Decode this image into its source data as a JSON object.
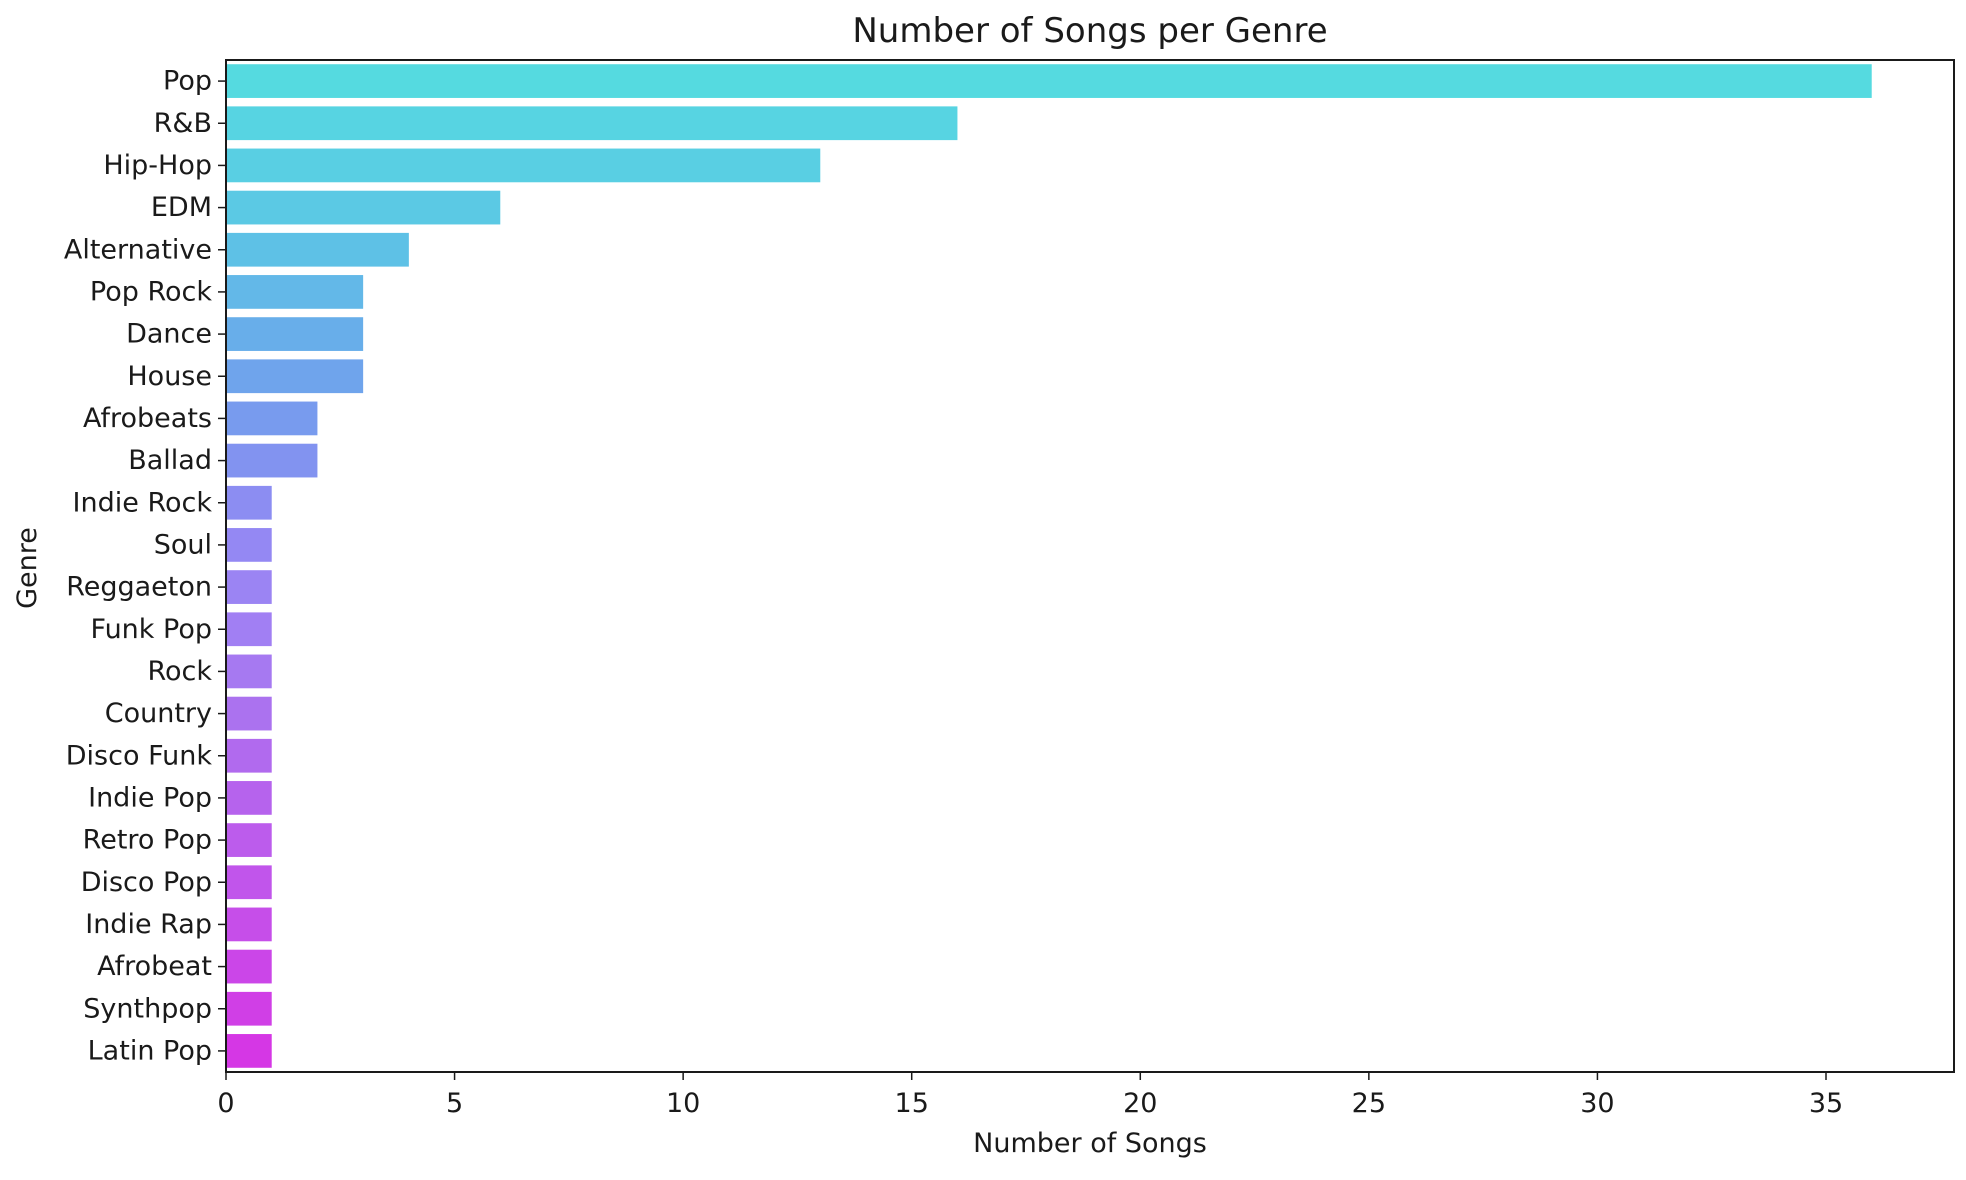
{
  "chart_data": {
    "type": "bar",
    "orientation": "horizontal",
    "title": "Number of Songs per Genre",
    "xlabel": "Number of Songs",
    "ylabel": "Genre",
    "xlim": [
      0,
      37.8
    ],
    "xticks": [
      0,
      5,
      10,
      15,
      20,
      25,
      30,
      35
    ],
    "grid": false,
    "categories": [
      "Pop",
      "R&B",
      "Hip-Hop",
      "EDM",
      "Alternative",
      "Pop Rock",
      "Dance",
      "House",
      "Afrobeats",
      "Ballad",
      "Indie Rock",
      "Soul",
      "Reggaeton",
      "Funk Pop",
      "Rock",
      "Country",
      "Disco Funk",
      "Indie Pop",
      "Retro Pop",
      "Disco Pop",
      "Indie Rap",
      "Afrobeat",
      "Synthpop",
      "Latin Pop"
    ],
    "values": [
      36,
      16,
      13,
      6,
      4,
      3,
      3,
      3,
      2,
      2,
      1,
      1,
      1,
      1,
      1,
      1,
      1,
      1,
      1,
      1,
      1,
      1,
      1,
      1
    ],
    "colors": [
      "#55dae0",
      "#57d4e2",
      "#59cfe3",
      "#5bc9e4",
      "#5ec1e6",
      "#63b8e8",
      "#68aeea",
      "#6fa4ec",
      "#789bee",
      "#8293f0",
      "#8c8df2",
      "#9488f3",
      "#9b84f3",
      "#a17ff3",
      "#a679f1",
      "#ab72ef",
      "#b16aee",
      "#b663ed",
      "#bc5cec",
      "#c155eb",
      "#c64ee9",
      "#cb46e8",
      "#d03fe6",
      "#d537e5"
    ]
  }
}
